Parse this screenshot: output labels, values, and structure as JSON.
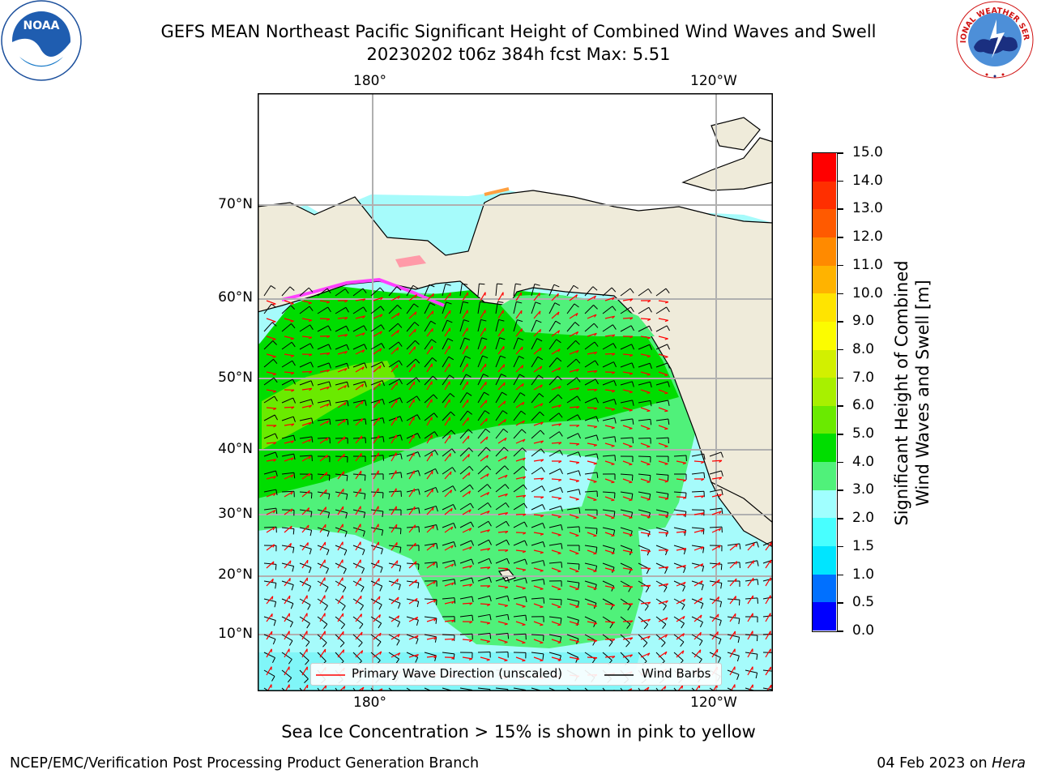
{
  "header": {
    "title_line1": "GEFS MEAN Northeast Pacific Significant Height of Combined Wind Waves and Swell",
    "title_line2": "20230202 t06z 384h fcst   Max: 5.51",
    "left_logo": "noaa-logo",
    "right_logo": "national-weather-service-logo",
    "left_logo_text": "NOAA",
    "right_logo_ring_text": "NATIONAL WEATHER SERVICE",
    "left_logo_ring_text": "NATIONAL OCEANIC AND ATMOSPHERIC ADMINISTRATION · U.S. DEPARTMENT OF COMMERCE"
  },
  "map": {
    "lon_labels_top": [
      "180°",
      "120°W"
    ],
    "lon_labels_bottom": [
      "180°",
      "120°W"
    ],
    "lat_labels": [
      "70°N",
      "60°N",
      "50°N",
      "40°N",
      "30°N",
      "20°N",
      "10°N"
    ],
    "land_color": "#efebda",
    "grid_color": "#b0b0b0",
    "legend": {
      "wave_direction": "Primary Wave Direction (unscaled)",
      "wind_barbs": "Wind Barbs",
      "wave_color": "#ff0000",
      "barb_color": "#000000"
    }
  },
  "colorbar": {
    "label_line1": "Significant Height of Combined",
    "label_line2": "Wind Waves and Swell [m]",
    "ticks": [
      "15.0",
      "14.0",
      "13.0",
      "12.0",
      "11.0",
      "10.0",
      "9.0",
      "8.0",
      "7.0",
      "6.0",
      "5.0",
      "4.0",
      "3.0",
      "2.0",
      "1.5",
      "1.0",
      "0.5",
      "0.0"
    ],
    "colors_bottom_to_top": [
      "#0000ff",
      "#0070ff",
      "#00e5ff",
      "#48ffff",
      "#a0ffff",
      "#50f17a",
      "#00dd00",
      "#6aea00",
      "#a8f000",
      "#d2f000",
      "#fcfc00",
      "#ffe400",
      "#ffb300",
      "#ff8a00",
      "#ff5a00",
      "#ff2f00",
      "#ff0000"
    ]
  },
  "caption": "Sea Ice Concentration > 15% is shown in pink to yellow",
  "footer": {
    "left": "NCEP/EMC/Verification Post Processing Product Generation Branch",
    "right_prefix": "04 Feb 2023 on ",
    "right_machine": "Hera"
  }
}
